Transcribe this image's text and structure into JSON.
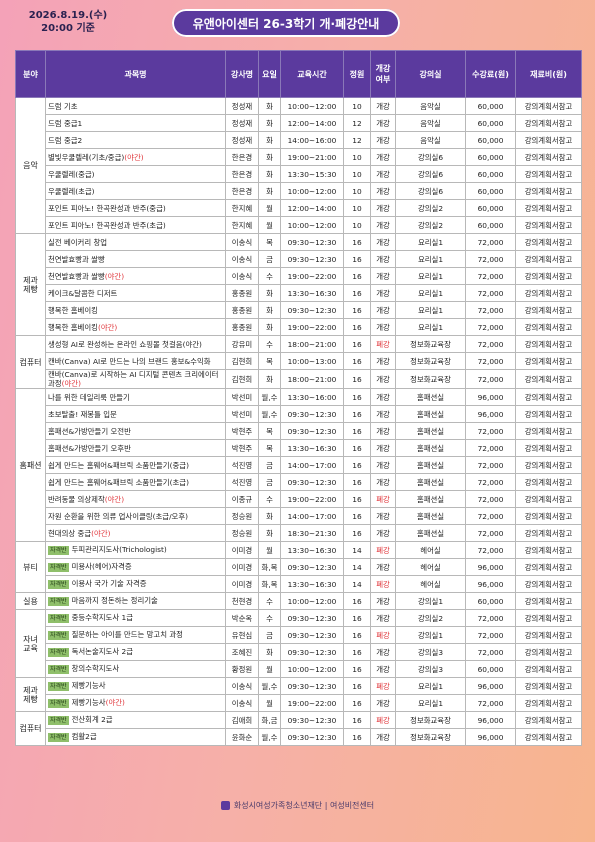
{
  "header": {
    "date": "2026.8.19.(수)",
    "time": "20:00 기준",
    "title": "유앤아이센터 26-3학기 개·폐강안내"
  },
  "table": {
    "columns": [
      "분야",
      "과목명",
      "강사명",
      "요일",
      "교육시간",
      "정원",
      "개강여부",
      "강의실",
      "수강료(원)",
      "재료비(원)"
    ],
    "groups": [
      {
        "category": "음악",
        "rows": [
          {
            "course": "드럼 기초",
            "cells": [
              "정성재",
              "화",
              "10:00~12:00",
              10,
              "개강",
              "음악실",
              "60,000",
              "강의계획서참고"
            ]
          },
          {
            "course": "드럼 중급1",
            "cells": [
              "정성재",
              "화",
              "12:00~14:00",
              12,
              "개강",
              "음악실",
              "60,000",
              "강의계획서참고"
            ]
          },
          {
            "course": "드럼 중급2",
            "cells": [
              "정성재",
              "화",
              "14:00~16:00",
              12,
              "개강",
              "음악실",
              "60,000",
              "강의계획서참고"
            ]
          },
          {
            "course": "별빛우쿨렐레(기초/중급)",
            "night": "(야간)",
            "cells": [
              "한은경",
              "화",
              "19:00~21:00",
              10,
              "개강",
              "강의실6",
              "60,000",
              "강의계획서참고"
            ]
          },
          {
            "course": "우쿨렐레(중급)",
            "cells": [
              "한은경",
              "화",
              "13:30~15:30",
              10,
              "개강",
              "강의실6",
              "60,000",
              "강의계획서참고"
            ]
          },
          {
            "course": "우쿨렐레(초급)",
            "cells": [
              "한은경",
              "화",
              "10:00~12:00",
              10,
              "개강",
              "강의실6",
              "60,000",
              "강의계획서참고"
            ]
          },
          {
            "course": "포인트 피아노! 한곡완성과 반주(중급)",
            "cells": [
              "한지혜",
              "월",
              "12:00~14:00",
              10,
              "개강",
              "강의실2",
              "60,000",
              "강의계획서참고"
            ]
          },
          {
            "course": "포인트 피아노! 한곡완성과 반주(초급)",
            "cells": [
              "한지혜",
              "월",
              "10:00~12:00",
              10,
              "개강",
              "강의실2",
              "60,000",
              "강의계획서참고"
            ]
          }
        ]
      },
      {
        "category": "제과 제빵",
        "rows": [
          {
            "course": "실전 베이커리 창업",
            "cells": [
              "이송식",
              "목",
              "09:30~12:30",
              16,
              "개강",
              "요리실1",
              "72,000",
              "강의계획서참고"
            ]
          },
          {
            "course": "천연발효빵과 쌀빵",
            "cells": [
              "이송식",
              "금",
              "09:30~12:30",
              16,
              "개강",
              "요리실1",
              "72,000",
              "강의계획서참고"
            ]
          },
          {
            "course": "천연발효빵과 쌀빵",
            "night": "(야간)",
            "cells": [
              "이송식",
              "수",
              "19:00~22:00",
              16,
              "개강",
              "요리실1",
              "72,000",
              "강의계획서참고"
            ]
          },
          {
            "course": "케이크&달콤한 디저트",
            "cells": [
              "홍종원",
              "화",
              "13:30~16:30",
              16,
              "개강",
              "요리실1",
              "72,000",
              "강의계획서참고"
            ]
          },
          {
            "course": "행복한 홈베이킹",
            "cells": [
              "홍종원",
              "화",
              "09:30~12:30",
              16,
              "개강",
              "요리실1",
              "72,000",
              "강의계획서참고"
            ]
          },
          {
            "course": "행복한 홈베이킹",
            "night": "(야간)",
            "cells": [
              "홍종원",
              "화",
              "19:00~22:00",
              16,
              "개강",
              "요리실1",
              "72,000",
              "강의계획서참고"
            ]
          }
        ]
      },
      {
        "category": "컴퓨터",
        "rows": [
          {
            "course": "생성형 AI로 완성하는 온라인 쇼핑몰 첫걸음(야간)",
            "cells": [
              "강유미",
              "수",
              "18:00~21:00",
              16,
              "폐강",
              "정보화교육장",
              "72,000",
              "강의계획서참고"
            ]
          },
          {
            "course": "캔바(Canva) AI로 만드는 나의 브랜드 홍보&수익화",
            "cells": [
              "김현희",
              "목",
              "10:00~13:00",
              16,
              "개강",
              "정보화교육장",
              "72,000",
              "강의계획서참고"
            ]
          },
          {
            "course": "캔바(Canva)로 시작하는 AI 디지털 콘텐츠 크리에이터 과정",
            "night": "(야간)",
            "cells": [
              "김현희",
              "화",
              "18:00~21:00",
              16,
              "개강",
              "정보화교육장",
              "72,000",
              "강의계획서참고"
            ]
          }
        ]
      },
      {
        "category": "홈패션",
        "rows": [
          {
            "course": "나를 위한 데일리룩 만들기",
            "cells": [
              "박선미",
              "월,수",
              "13:30~16:00",
              16,
              "개강",
              "홈패션실",
              "96,000",
              "강의계획서참고"
            ]
          },
          {
            "course": "초보탈출! 재봉틀 입문",
            "cells": [
              "박선미",
              "월,수",
              "09:30~12:30",
              16,
              "개강",
              "홈패션실",
              "96,000",
              "강의계획서참고"
            ]
          },
          {
            "course": "홈패션&가방만들기 오전반",
            "cells": [
              "박현주",
              "목",
              "09:30~12:30",
              16,
              "개강",
              "홈패션실",
              "72,000",
              "강의계획서참고"
            ]
          },
          {
            "course": "홈패션&가방만들기 오후반",
            "cells": [
              "박현주",
              "목",
              "13:30~16:30",
              16,
              "개강",
              "홈패션실",
              "72,000",
              "강의계획서참고"
            ]
          },
          {
            "course": "쉽게 만드는 홈웨어&패브릭 소품만들기(중급)",
            "cells": [
              "석진영",
              "금",
              "14:00~17:00",
              16,
              "개강",
              "홈패션실",
              "72,000",
              "강의계획서참고"
            ]
          },
          {
            "course": "쉽게 만드는 홈웨어&패브릭 소품만들기(초급)",
            "cells": [
              "석진영",
              "금",
              "09:30~12:30",
              16,
              "개강",
              "홈패션실",
              "72,000",
              "강의계획서참고"
            ]
          },
          {
            "course": "반려동물 의상제작",
            "night": "(야간)",
            "cells": [
              "이종규",
              "수",
              "19:00~22:00",
              16,
              "폐강",
              "홈패션실",
              "72,000",
              "강의계획서참고"
            ]
          },
          {
            "course": "자원 순환을 위한 의류 업사이클링(초급/오후)",
            "cells": [
              "정승원",
              "화",
              "14:00~17:00",
              16,
              "개강",
              "홈패션실",
              "72,000",
              "강의계획서참고"
            ]
          },
          {
            "course": "현대의상 중급",
            "night": "(야간)",
            "cells": [
              "정승원",
              "화",
              "18:30~21:30",
              16,
              "개강",
              "홈패션실",
              "72,000",
              "강의계획서참고"
            ]
          }
        ]
      },
      {
        "category": "뷰티",
        "rows": [
          {
            "badge": "자격반",
            "course": "두피관리지도사(Trichologist)",
            "cells": [
              "이미경",
              "월",
              "13:30~16:30",
              14,
              "폐강",
              "헤어실",
              "72,000",
              "강의계획서참고"
            ]
          },
          {
            "badge": "자격반",
            "course": "미용사(헤어)자격증",
            "cells": [
              "이미경",
              "화,목",
              "09:30~12:30",
              14,
              "개강",
              "헤어실",
              "96,000",
              "강의계획서참고"
            ]
          },
          {
            "badge": "자격반",
            "course": "이용사 국가 기술 자격증",
            "cells": [
              "이미경",
              "화,목",
              "13:30~16:30",
              14,
              "폐강",
              "헤어실",
              "96,000",
              "강의계획서참고"
            ]
          }
        ]
      },
      {
        "category": "실용",
        "rows": [
          {
            "badge": "자격반",
            "course": "마음까지 정돈하는 정리기술",
            "cells": [
              "천현경",
              "수",
              "10:00~12:00",
              16,
              "개강",
              "강의실1",
              "60,000",
              "강의계획서참고"
            ]
          }
        ]
      },
      {
        "category": "자녀 교육",
        "rows": [
          {
            "badge": "자격반",
            "course": "중등수학지도사 1급",
            "cells": [
              "박순옥",
              "수",
              "09:30~12:30",
              16,
              "개강",
              "강의실2",
              "72,000",
              "강의계획서참고"
            ]
          },
          {
            "badge": "자격반",
            "course": "질문하는 아이를 만드는 망고치 과정",
            "cells": [
              "유현심",
              "금",
              "09:30~12:30",
              16,
              "폐강",
              "강의실1",
              "72,000",
              "강의계획서참고"
            ]
          },
          {
            "badge": "자격반",
            "course": "독서논술지도사 2급",
            "cells": [
              "조혜진",
              "화",
              "09:30~12:30",
              16,
              "개강",
              "강의실3",
              "72,000",
              "강의계획서참고"
            ]
          },
          {
            "badge": "자격반",
            "course": "창의수학지도사",
            "cells": [
              "황정원",
              "월",
              "10:00~12:00",
              16,
              "개강",
              "강의실3",
              "60,000",
              "강의계획서참고"
            ]
          }
        ]
      },
      {
        "category": "제과 제빵",
        "rows": [
          {
            "badge": "자격반",
            "course": "제빵기능사",
            "cells": [
              "이송식",
              "월,수",
              "09:30~12:30",
              16,
              "폐강",
              "요리실1",
              "96,000",
              "강의계획서참고"
            ]
          },
          {
            "badge": "자격반",
            "course": "제빵기능사",
            "night": "(야간)",
            "cells": [
              "이송식",
              "월",
              "19:00~22:00",
              16,
              "개강",
              "요리실1",
              "72,000",
              "강의계획서참고"
            ]
          }
        ]
      },
      {
        "category": "컴퓨터",
        "rows": [
          {
            "badge": "자격반",
            "course": "전산회계 2급",
            "cells": [
              "김애희",
              "화,금",
              "09:30~12:30",
              16,
              "폐강",
              "정보화교육장",
              "96,000",
              "강의계획서참고"
            ]
          },
          {
            "badge": "자격반",
            "course": "컴활2급",
            "cells": [
              "윤화순",
              "월,수",
              "09:30~12:30",
              16,
              "개강",
              "정보화교육장",
              "96,000",
              "강의계획서참고"
            ]
          }
        ]
      }
    ]
  },
  "footer": {
    "org": "화성시여성가족청소년재단",
    "center": "여성비전센터"
  }
}
